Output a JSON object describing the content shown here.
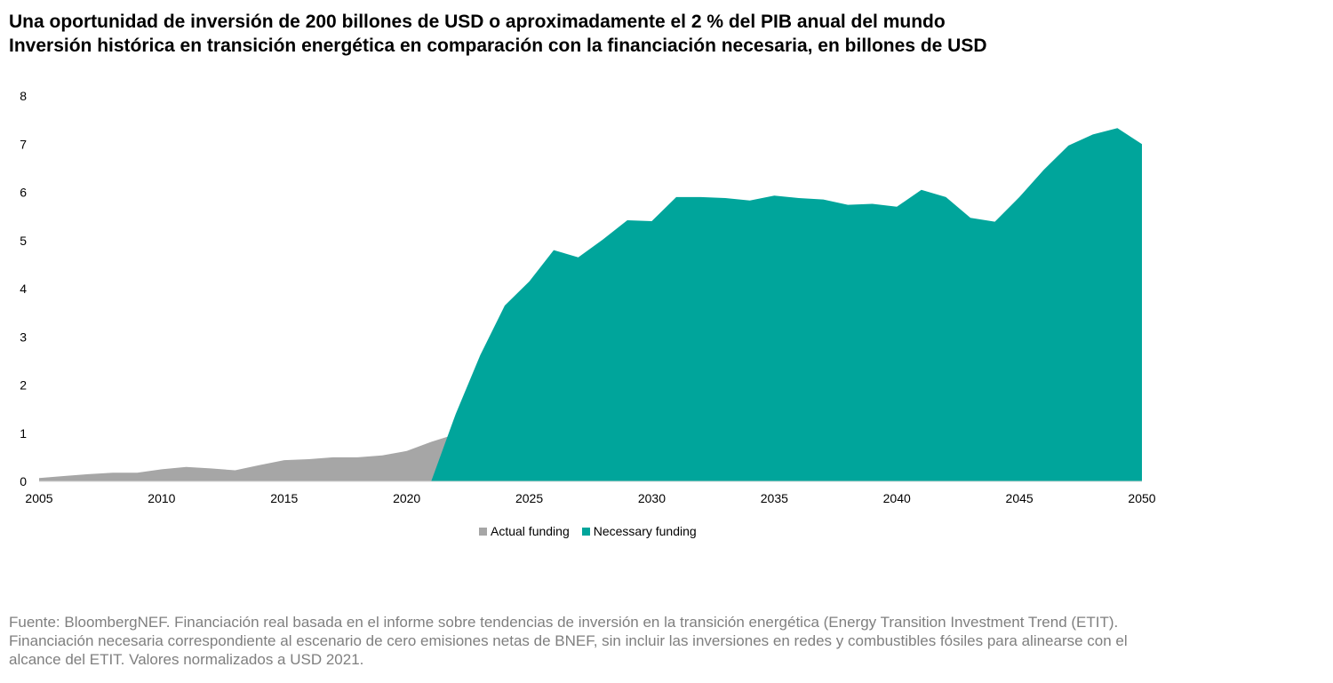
{
  "header": {
    "title_line1": "Una oportunidad de inversión de 200 billones de USD o aproximadamente el 2 % del PIB anual del mundo",
    "title_line2": "Inversión histórica en transición energética en comparación con la financiación necesaria, en billones de USD"
  },
  "footer": {
    "source": "Fuente: BloombergNEF. Financiación real basada en el informe sobre tendencias de inversión en la transición energética (Energy Transition Investment Trend (ETIT). Financiación necesaria correspondiente al escenario de cero emisiones netas de BNEF,  sin incluir las inversiones en redes y combustibles fósiles para alinearse con el alcance del ETIT. Valores normalizados a USD 2021."
  },
  "chart_data": {
    "type": "area",
    "xlim": [
      2005,
      2050
    ],
    "ylim": [
      0,
      8
    ],
    "xticks": [
      2005,
      2010,
      2015,
      2020,
      2025,
      2030,
      2035,
      2040,
      2045,
      2050
    ],
    "yticks": [
      0,
      1,
      2,
      3,
      4,
      5,
      6,
      7,
      8
    ],
    "grid": false,
    "legend_position": "bottom-center",
    "series": [
      {
        "name": "Actual funding",
        "color": "#a6a6a6",
        "x": [
          2005,
          2006,
          2007,
          2008,
          2009,
          2010,
          2011,
          2012,
          2013,
          2014,
          2015,
          2016,
          2017,
          2018,
          2019,
          2020,
          2021,
          2022
        ],
        "y": [
          0.07,
          0.11,
          0.15,
          0.18,
          0.18,
          0.25,
          0.3,
          0.27,
          0.23,
          0.34,
          0.44,
          0.46,
          0.5,
          0.5,
          0.54,
          0.63,
          0.82,
          0.98
        ]
      },
      {
        "name": "Necessary funding",
        "color": "#00a59b",
        "x": [
          2021,
          2022,
          2023,
          2024,
          2025,
          2026,
          2027,
          2028,
          2029,
          2030,
          2031,
          2032,
          2033,
          2034,
          2035,
          2036,
          2037,
          2038,
          2039,
          2040,
          2041,
          2042,
          2043,
          2044,
          2045,
          2046,
          2047,
          2048,
          2049,
          2050
        ],
        "y": [
          0,
          1.4,
          2.62,
          3.65,
          4.15,
          4.8,
          4.65,
          5.02,
          5.42,
          5.4,
          5.9,
          5.9,
          5.88,
          5.83,
          5.93,
          5.88,
          5.85,
          5.74,
          5.76,
          5.7,
          6.05,
          5.9,
          5.47,
          5.39,
          5.9,
          6.47,
          6.97,
          7.2,
          7.33,
          7.0
        ]
      }
    ]
  }
}
